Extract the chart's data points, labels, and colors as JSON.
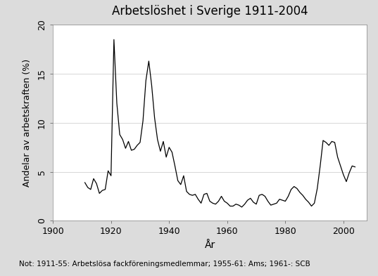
{
  "title": "Arbetslöshet i Sverige 1911-2004",
  "xlabel": "År",
  "ylabel": "Andelar av arbetskraften (%)",
  "note": "Not: 1911-55: Arbetslösa fackföreningsmedlemmar; 1955-61: Ams; 1961-: SCB",
  "xlim": [
    1900,
    2008
  ],
  "ylim": [
    0,
    20
  ],
  "xticks": [
    1900,
    1920,
    1940,
    1960,
    1980,
    2000
  ],
  "yticks": [
    0,
    5,
    10,
    15,
    20
  ],
  "line_color": "#000000",
  "bg_color": "#dcdcdc",
  "plot_bg_color": "#ffffff",
  "figsize": [
    5.37,
    3.93
  ],
  "data": [
    [
      1911,
      3.9
    ],
    [
      1912,
      3.4
    ],
    [
      1913,
      3.2
    ],
    [
      1914,
      4.3
    ],
    [
      1915,
      3.8
    ],
    [
      1916,
      2.8
    ],
    [
      1917,
      3.1
    ],
    [
      1918,
      3.2
    ],
    [
      1919,
      5.1
    ],
    [
      1920,
      4.6
    ],
    [
      1921,
      18.5
    ],
    [
      1922,
      12.0
    ],
    [
      1923,
      8.8
    ],
    [
      1924,
      8.3
    ],
    [
      1925,
      7.4
    ],
    [
      1926,
      8.1
    ],
    [
      1927,
      7.2
    ],
    [
      1928,
      7.3
    ],
    [
      1929,
      7.7
    ],
    [
      1930,
      8.0
    ],
    [
      1931,
      10.2
    ],
    [
      1932,
      14.3
    ],
    [
      1933,
      16.3
    ],
    [
      1934,
      13.8
    ],
    [
      1935,
      10.5
    ],
    [
      1936,
      8.3
    ],
    [
      1937,
      7.1
    ],
    [
      1938,
      8.1
    ],
    [
      1939,
      6.5
    ],
    [
      1940,
      7.5
    ],
    [
      1941,
      7.0
    ],
    [
      1942,
      5.6
    ],
    [
      1943,
      4.1
    ],
    [
      1944,
      3.7
    ],
    [
      1945,
      4.6
    ],
    [
      1946,
      3.0
    ],
    [
      1947,
      2.7
    ],
    [
      1948,
      2.6
    ],
    [
      1949,
      2.7
    ],
    [
      1950,
      2.2
    ],
    [
      1951,
      1.8
    ],
    [
      1952,
      2.7
    ],
    [
      1953,
      2.8
    ],
    [
      1954,
      2.0
    ],
    [
      1955,
      1.8
    ],
    [
      1956,
      1.7
    ],
    [
      1957,
      2.0
    ],
    [
      1958,
      2.5
    ],
    [
      1959,
      2.0
    ],
    [
      1960,
      1.8
    ],
    [
      1961,
      1.5
    ],
    [
      1962,
      1.5
    ],
    [
      1963,
      1.7
    ],
    [
      1964,
      1.6
    ],
    [
      1965,
      1.4
    ],
    [
      1966,
      1.7
    ],
    [
      1967,
      2.1
    ],
    [
      1968,
      2.3
    ],
    [
      1969,
      1.9
    ],
    [
      1970,
      1.7
    ],
    [
      1971,
      2.6
    ],
    [
      1972,
      2.7
    ],
    [
      1973,
      2.5
    ],
    [
      1974,
      2.0
    ],
    [
      1975,
      1.6
    ],
    [
      1976,
      1.7
    ],
    [
      1977,
      1.8
    ],
    [
      1978,
      2.2
    ],
    [
      1979,
      2.1
    ],
    [
      1980,
      2.0
    ],
    [
      1981,
      2.5
    ],
    [
      1982,
      3.2
    ],
    [
      1983,
      3.5
    ],
    [
      1984,
      3.3
    ],
    [
      1985,
      2.9
    ],
    [
      1986,
      2.6
    ],
    [
      1987,
      2.2
    ],
    [
      1988,
      1.9
    ],
    [
      1989,
      1.5
    ],
    [
      1990,
      1.8
    ],
    [
      1991,
      3.3
    ],
    [
      1992,
      5.6
    ],
    [
      1993,
      8.2
    ],
    [
      1994,
      8.0
    ],
    [
      1995,
      7.7
    ],
    [
      1996,
      8.1
    ],
    [
      1997,
      8.0
    ],
    [
      1998,
      6.5
    ],
    [
      1999,
      5.6
    ],
    [
      2000,
      4.7
    ],
    [
      2001,
      4.0
    ],
    [
      2002,
      4.9
    ],
    [
      2003,
      5.6
    ],
    [
      2004,
      5.5
    ]
  ]
}
